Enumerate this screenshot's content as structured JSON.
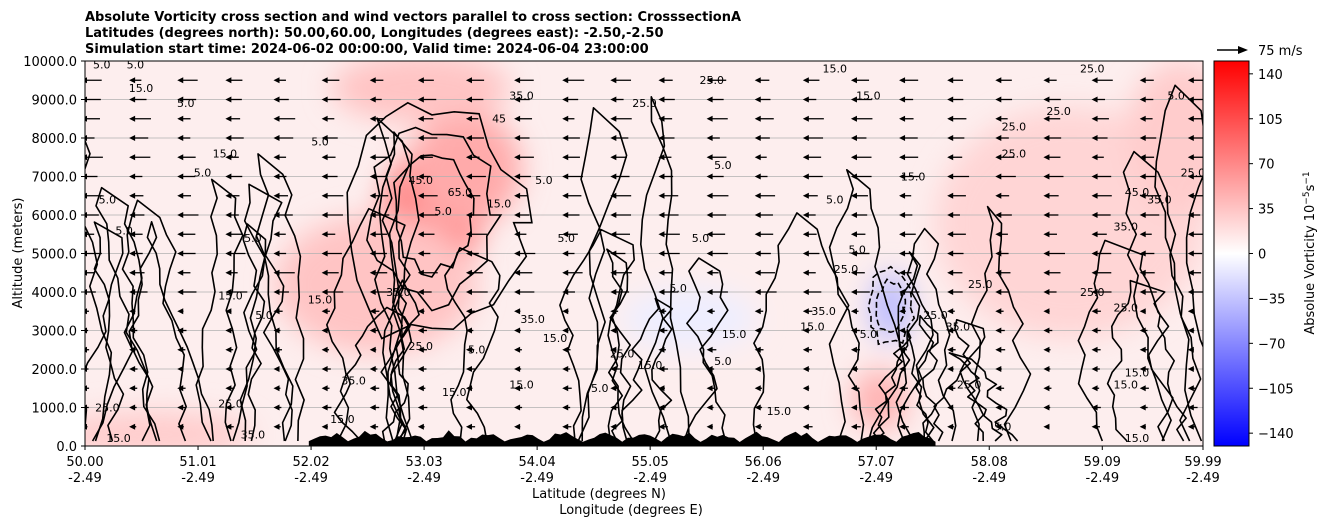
{
  "chart_data": {
    "type": "heatmap",
    "title_lines": [
      "Absolute Vorticity cross section and wind vectors parallel to cross section: CrosssectionA",
      "Latitudes (degrees north): 50.00,60.00, Longitudes (degrees east): -2.50,-2.50",
      "Simulation start time: 2024-06-02 00:00:00, Valid time: 2024-06-04 23:00:00"
    ],
    "xlabel": "Latitude (degrees N)",
    "xlabel2": "Longitude (degrees E)",
    "ylabel": "Altitude (meters)",
    "xlim": [
      50.0,
      59.99
    ],
    "ylim": [
      0,
      10000
    ],
    "grid": "horizontal",
    "x_ticks": [
      {
        "lat": "50.00",
        "lon": "-2.49",
        "v": 50.0
      },
      {
        "lat": "51.01",
        "lon": "-2.49",
        "v": 51.01
      },
      {
        "lat": "52.02",
        "lon": "-2.49",
        "v": 52.02
      },
      {
        "lat": "53.03",
        "lon": "-2.49",
        "v": 53.03
      },
      {
        "lat": "54.04",
        "lon": "-2.49",
        "v": 54.04
      },
      {
        "lat": "55.05",
        "lon": "-2.49",
        "v": 55.05
      },
      {
        "lat": "56.06",
        "lon": "-2.49",
        "v": 56.06
      },
      {
        "lat": "57.07",
        "lon": "-2.49",
        "v": 57.07
      },
      {
        "lat": "58.08",
        "lon": "-2.49",
        "v": 58.08
      },
      {
        "lat": "59.09",
        "lon": "-2.49",
        "v": 59.09
      },
      {
        "lat": "59.99",
        "lon": "-2.49",
        "v": 59.99
      }
    ],
    "y_ticks": [
      {
        "label": "0.0",
        "v": 0
      },
      {
        "label": "1000.0",
        "v": 1000
      },
      {
        "label": "2000.0",
        "v": 2000
      },
      {
        "label": "3000.0",
        "v": 3000
      },
      {
        "label": "4000.0",
        "v": 4000
      },
      {
        "label": "5000.0",
        "v": 5000
      },
      {
        "label": "6000.0",
        "v": 6000
      },
      {
        "label": "7000.0",
        "v": 7000
      },
      {
        "label": "8000.0",
        "v": 8000
      },
      {
        "label": "9000.0",
        "v": 9000
      },
      {
        "label": "10000.0",
        "v": 10000
      }
    ],
    "colorbar": {
      "label": "Absolue Vorticity 10",
      "label_exp": "−5",
      "label_unit": "s",
      "label_unit_exp": "−1",
      "range": [
        -150,
        150
      ],
      "ticks": [
        "140",
        "105",
        "70",
        "35",
        "0",
        "−35",
        "−70",
        "−105",
        "−140"
      ],
      "tick_values": [
        140,
        105,
        70,
        35,
        0,
        -35,
        -70,
        -105,
        -140
      ],
      "color_low": "#0000ff",
      "color_mid": "#ffffff",
      "color_high": "#ff0000"
    },
    "quiver_key": {
      "label": "75 m/s",
      "value": 75
    },
    "vorticity_blobs": [
      {
        "lat": 53.1,
        "alt": 6000,
        "value": 75,
        "rlat": 0.45,
        "ralt": 1800
      },
      {
        "lat": 53.4,
        "alt": 7200,
        "value": 50,
        "rlat": 0.5,
        "ralt": 1500
      },
      {
        "lat": 52.6,
        "alt": 4200,
        "value": 35,
        "rlat": 0.9,
        "ralt": 1800
      },
      {
        "lat": 53.0,
        "alt": 9300,
        "value": 35,
        "rlat": 0.8,
        "ralt": 900
      },
      {
        "lat": 50.6,
        "alt": 300,
        "value": 30,
        "rlat": 0.9,
        "ralt": 600
      },
      {
        "lat": 57.2,
        "alt": 3600,
        "value": -40,
        "rlat": 0.18,
        "ralt": 900
      },
      {
        "lat": 57.1,
        "alt": 1200,
        "value": 45,
        "rlat": 0.25,
        "ralt": 800
      },
      {
        "lat": 58.8,
        "alt": 5800,
        "value": 25,
        "rlat": 1.2,
        "ralt": 3000
      },
      {
        "lat": 55.4,
        "alt": 3300,
        "value": -10,
        "rlat": 0.6,
        "ralt": 800
      },
      {
        "lat": 59.8,
        "alt": 8000,
        "value": 30,
        "rlat": 0.5,
        "ralt": 2000
      }
    ],
    "contour_labels": [
      {
        "t": "5.0",
        "lat": 50.15,
        "alt": 9800
      },
      {
        "t": "5.0",
        "lat": 50.45,
        "alt": 9800
      },
      {
        "t": "15.0",
        "lat": 50.5,
        "alt": 9200
      },
      {
        "t": "5.0",
        "lat": 50.9,
        "alt": 8800
      },
      {
        "t": "15.0",
        "lat": 51.25,
        "alt": 7500
      },
      {
        "t": "5.0",
        "lat": 51.05,
        "alt": 7000
      },
      {
        "t": "5.0",
        "lat": 50.2,
        "alt": 6300
      },
      {
        "t": "5.0",
        "lat": 50.35,
        "alt": 5500
      },
      {
        "t": "5.0",
        "lat": 51.5,
        "alt": 5300
      },
      {
        "t": "5.0",
        "lat": 52.1,
        "alt": 7800
      },
      {
        "t": "35.0",
        "lat": 53.9,
        "alt": 9000
      },
      {
        "t": "45",
        "lat": 53.7,
        "alt": 8400
      },
      {
        "t": "45.0",
        "lat": 53.0,
        "alt": 6800
      },
      {
        "t": "65.0",
        "lat": 53.35,
        "alt": 6500
      },
      {
        "t": "5.0",
        "lat": 53.2,
        "alt": 6000
      },
      {
        "t": "15.0",
        "lat": 53.7,
        "alt": 6200
      },
      {
        "t": "5.0",
        "lat": 54.1,
        "alt": 6800
      },
      {
        "t": "5.0",
        "lat": 54.3,
        "alt": 5300
      },
      {
        "t": "5.0",
        "lat": 55.7,
        "alt": 7200
      },
      {
        "t": "25.0",
        "lat": 55.6,
        "alt": 9400
      },
      {
        "t": "25.0",
        "lat": 55.0,
        "alt": 8800
      },
      {
        "t": "35.0",
        "lat": 52.8,
        "alt": 3900
      },
      {
        "t": "15.0",
        "lat": 51.3,
        "alt": 3800
      },
      {
        "t": "15.0",
        "lat": 52.1,
        "alt": 3700
      },
      {
        "t": "5.0",
        "lat": 51.6,
        "alt": 3300
      },
      {
        "t": "25.0",
        "lat": 53.0,
        "alt": 2500
      },
      {
        "t": "5.0",
        "lat": 53.5,
        "alt": 2400
      },
      {
        "t": "35.0",
        "lat": 54.0,
        "alt": 3200
      },
      {
        "t": "15.0",
        "lat": 54.2,
        "alt": 2700
      },
      {
        "t": "5.0",
        "lat": 54.6,
        "alt": 1400
      },
      {
        "t": "25.0",
        "lat": 54.8,
        "alt": 2300
      },
      {
        "t": "15.0",
        "lat": 55.05,
        "alt": 2000
      },
      {
        "t": "5.0",
        "lat": 55.3,
        "alt": 4000
      },
      {
        "t": "15.0",
        "lat": 55.8,
        "alt": 2800
      },
      {
        "t": "5.0",
        "lat": 55.7,
        "alt": 2100
      },
      {
        "t": "5.0",
        "lat": 55.5,
        "alt": 5300
      },
      {
        "t": "15.0",
        "lat": 53.9,
        "alt": 1500
      },
      {
        "t": "15.0",
        "lat": 53.3,
        "alt": 1300
      },
      {
        "t": "25.0",
        "lat": 51.3,
        "alt": 1000
      },
      {
        "t": "25.0",
        "lat": 50.2,
        "alt": 900
      },
      {
        "t": "15.0",
        "lat": 50.3,
        "alt": 100
      },
      {
        "t": "35.0",
        "lat": 51.5,
        "alt": 200
      },
      {
        "t": "15.0",
        "lat": 52.3,
        "alt": 600
      },
      {
        "t": "35.0",
        "lat": 52.4,
        "alt": 1600
      },
      {
        "t": "15.0",
        "lat": 56.2,
        "alt": 800
      },
      {
        "t": "15.0",
        "lat": 56.5,
        "alt": 3000
      },
      {
        "t": "35.0",
        "lat": 56.6,
        "alt": 3400
      },
      {
        "t": "25.0",
        "lat": 56.8,
        "alt": 4500
      },
      {
        "t": "5.0",
        "lat": 56.7,
        "alt": 6300
      },
      {
        "t": "5.0",
        "lat": 56.9,
        "alt": 5000
      },
      {
        "t": "15.0",
        "lat": 57.4,
        "alt": 6900
      },
      {
        "t": "15.0",
        "lat": 56.7,
        "alt": 9700
      },
      {
        "t": "15.0",
        "lat": 57.0,
        "alt": 9000
      },
      {
        "t": "5.0",
        "lat": 57.0,
        "alt": 2800
      },
      {
        "t": "25.0",
        "lat": 57.6,
        "alt": 3300
      },
      {
        "t": "35.0",
        "lat": 57.8,
        "alt": 3000
      },
      {
        "t": "25.0",
        "lat": 57.9,
        "alt": 1500
      },
      {
        "t": "25.0",
        "lat": 58.0,
        "alt": 4100
      },
      {
        "t": "25.0",
        "lat": 58.3,
        "alt": 7500
      },
      {
        "t": "25.0",
        "lat": 58.3,
        "alt": 8200
      },
      {
        "t": "25.0",
        "lat": 58.7,
        "alt": 8600
      },
      {
        "t": "25.0",
        "lat": 59.0,
        "alt": 9700
      },
      {
        "t": "35.0",
        "lat": 59.3,
        "alt": 5600
      },
      {
        "t": "25.0",
        "lat": 59.0,
        "alt": 3900
      },
      {
        "t": "45.0",
        "lat": 59.4,
        "alt": 6500
      },
      {
        "t": "35.0",
        "lat": 59.6,
        "alt": 6300
      },
      {
        "t": "25.0",
        "lat": 59.9,
        "alt": 7000
      },
      {
        "t": "25.0",
        "lat": 59.3,
        "alt": 3500
      },
      {
        "t": "15.0",
        "lat": 59.4,
        "alt": 1800
      },
      {
        "t": "15.0",
        "lat": 59.3,
        "alt": 1500
      },
      {
        "t": "15.0",
        "lat": 59.4,
        "alt": 100
      },
      {
        "t": "5.0",
        "lat": 58.2,
        "alt": 400
      },
      {
        "t": "5.0",
        "lat": 59.75,
        "alt": 9000
      }
    ]
  }
}
